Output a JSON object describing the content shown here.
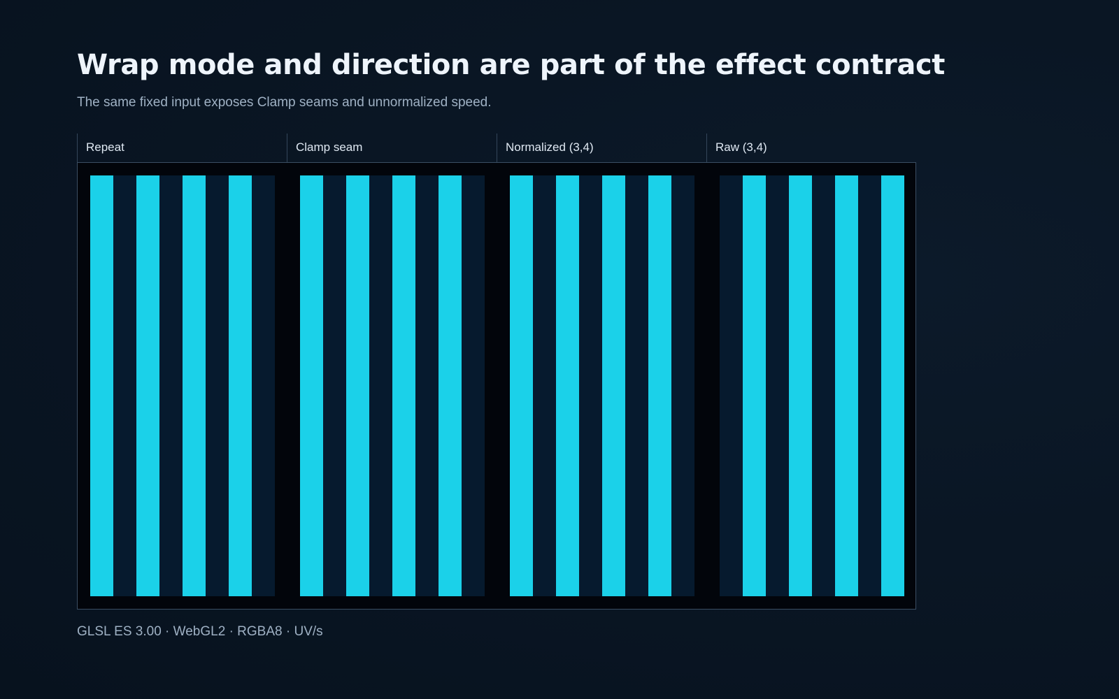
{
  "title": "Wrap mode and direction are part of the effect contract",
  "subtitle": "The same fixed input exposes Clamp seams and unnormalized speed.",
  "footer": "GLSL ES 3.00 · WebGL2 · RGBA8 · UV/s",
  "colors": {
    "stripe": "#1bd1e9",
    "stripe_bg": "#061a2e",
    "frame_bg": "#02050b"
  },
  "panels": [
    {
      "label": "Repeat",
      "stripe_period": 0.25,
      "stripe_width": 0.5,
      "phase": 0.0,
      "wrap": "repeat"
    },
    {
      "label": "Clamp seam",
      "stripe_period": 0.25,
      "stripe_width": 0.5,
      "phase": 0.0,
      "wrap": "clamp"
    },
    {
      "label": "Normalized (3,4)",
      "stripe_period": 0.25,
      "stripe_width": 0.5,
      "phase": 0.0,
      "wrap": "repeat"
    },
    {
      "label": "Raw (3,4)",
      "stripe_period": 0.25,
      "stripe_width": 0.5,
      "phase": 0.125,
      "wrap": "repeat"
    }
  ]
}
